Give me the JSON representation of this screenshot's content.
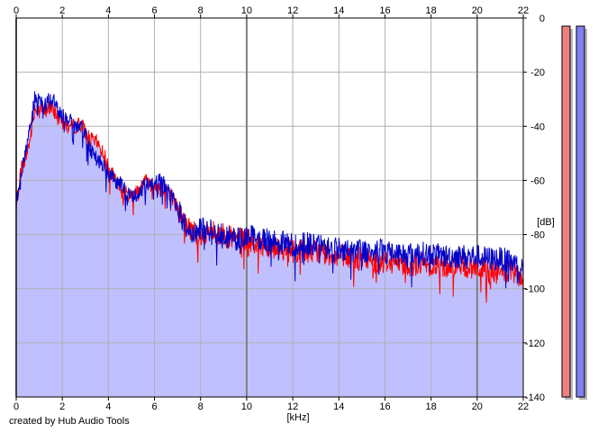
{
  "credit": "created by Hub Audio Tools",
  "chart_data": {
    "type": "area",
    "title": "",
    "xlabel": "[kHz]",
    "ylabel": "[dB]",
    "xlim": [
      0,
      22
    ],
    "ylim": [
      -140,
      0
    ],
    "x_ticks": [
      0,
      2,
      4,
      6,
      8,
      10,
      12,
      14,
      16,
      18,
      20,
      22
    ],
    "y_ticks": [
      0,
      -20,
      -40,
      -60,
      -80,
      -100,
      -120,
      -140
    ],
    "grid": true,
    "colors": {
      "fill": "#c0c0ff",
      "series_red": "#ff0000",
      "series_blue": "#0000c8",
      "grid": "#b0b0b0",
      "grid_major": "#808080",
      "meter_red": "#f08080",
      "meter_blue": "#8080f0"
    },
    "x": [
      0.0,
      0.2,
      0.4,
      0.6,
      0.8,
      1.0,
      1.2,
      1.4,
      1.6,
      1.8,
      2.0,
      2.2,
      2.5,
      2.8,
      3.0,
      3.2,
      3.5,
      3.8,
      4.0,
      4.3,
      4.6,
      5.0,
      5.3,
      5.6,
      6.0,
      6.3,
      6.6,
      7.0,
      7.3,
      7.6,
      8.0,
      8.5,
      9.0,
      9.5,
      10.0,
      10.5,
      11.0,
      11.5,
      12.0,
      12.5,
      13.0,
      13.5,
      14.0,
      14.5,
      15.0,
      15.5,
      16.0,
      16.5,
      17.0,
      17.5,
      18.0,
      18.5,
      19.0,
      19.5,
      20.0,
      20.5,
      21.0,
      21.5,
      22.0
    ],
    "series": [
      {
        "color": "red",
        "values": [
          -70,
          -56,
          -52,
          -45,
          -34,
          -32,
          -35,
          -33,
          -34,
          -36,
          -38,
          -40,
          -40,
          -39,
          -42,
          -45,
          -46,
          -50,
          -55,
          -60,
          -64,
          -66,
          -63,
          -60,
          -62,
          -63,
          -63,
          -70,
          -76,
          -78,
          -80,
          -79,
          -80,
          -82,
          -82,
          -84,
          -84,
          -85,
          -86,
          -86,
          -86,
          -87,
          -88,
          -89,
          -89,
          -90,
          -90,
          -90,
          -91,
          -91,
          -91,
          -92,
          -91,
          -92,
          -92,
          -94,
          -94,
          -94,
          -97
        ]
      },
      {
        "color": "blue",
        "values": [
          -68,
          -58,
          -50,
          -40,
          -30,
          -30,
          -33,
          -30,
          -30,
          -34,
          -36,
          -37,
          -40,
          -41,
          -42,
          -48,
          -52,
          -55,
          -57,
          -60,
          -62,
          -66,
          -65,
          -62,
          -60,
          -60,
          -64,
          -70,
          -76,
          -80,
          -78,
          -78,
          -80,
          -82,
          -80,
          -82,
          -82,
          -83,
          -84,
          -83,
          -84,
          -85,
          -85,
          -86,
          -86,
          -86,
          -86,
          -87,
          -87,
          -87,
          -87,
          -88,
          -88,
          -88,
          -88,
          -89,
          -89,
          -90,
          -93
        ]
      }
    ],
    "level_meters": [
      {
        "color": "red",
        "value": -3
      },
      {
        "color": "blue",
        "value": -3
      }
    ]
  }
}
